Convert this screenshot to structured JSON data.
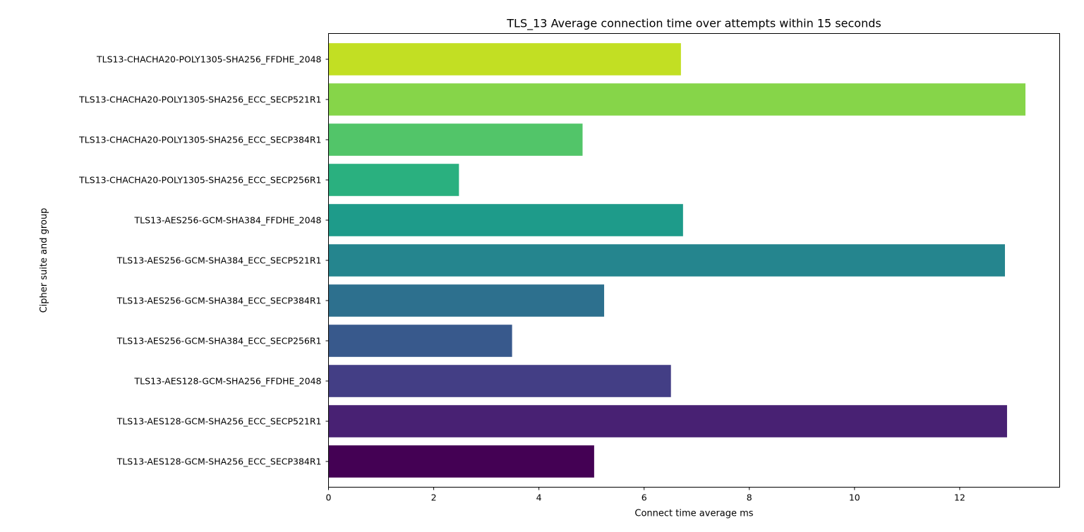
{
  "chart_data": {
    "type": "bar",
    "orientation": "horizontal",
    "title": "TLS_13 Average connection time over attempts within 15 seconds",
    "xlabel": "Connect time average ms",
    "ylabel": "Cipher suite and group",
    "xlim": [
      0,
      13.9
    ],
    "xticks": [
      0,
      2,
      4,
      6,
      8,
      10,
      12
    ],
    "grid": false,
    "legend": "none",
    "categories": [
      "TLS13-AES128-GCM-SHA256_ECC_SECP384R1",
      "TLS13-AES128-GCM-SHA256_ECC_SECP521R1",
      "TLS13-AES128-GCM-SHA256_FFDHE_2048",
      "TLS13-AES256-GCM-SHA384_ECC_SECP256R1",
      "TLS13-AES256-GCM-SHA384_ECC_SECP384R1",
      "TLS13-AES256-GCM-SHA384_ECC_SECP521R1",
      "TLS13-AES256-GCM-SHA384_FFDHE_2048",
      "TLS13-CHACHA20-POLY1305-SHA256_ECC_SECP256R1",
      "TLS13-CHACHA20-POLY1305-SHA256_ECC_SECP384R1",
      "TLS13-CHACHA20-POLY1305-SHA256_ECC_SECP521R1",
      "TLS13-CHACHA20-POLY1305-SHA256_FFDHE_2048"
    ],
    "values": [
      5.05,
      12.9,
      6.51,
      3.49,
      5.24,
      12.86,
      6.74,
      2.48,
      4.83,
      13.25,
      6.7
    ],
    "colors": [
      "#440154",
      "#482173",
      "#433e85",
      "#38598c",
      "#2d708e",
      "#25858e",
      "#1e9b8a",
      "#2ab07f",
      "#52c569",
      "#86d549",
      "#c2df23"
    ]
  }
}
